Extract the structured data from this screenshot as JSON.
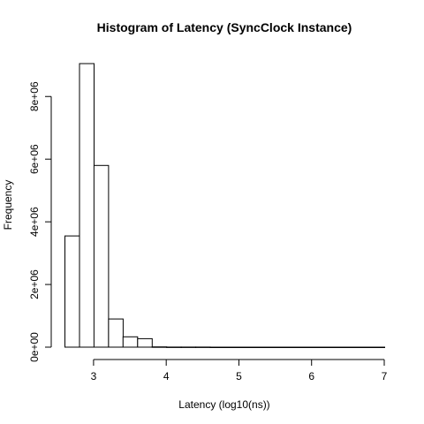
{
  "chart_data": {
    "type": "bar",
    "title": "Histogram of Latency (SyncClock Instance)",
    "xlabel": "Latency (log10(ns))",
    "ylabel": "Frequency",
    "bin_width": 0.2,
    "bins": [
      {
        "start": 2.6,
        "count": 3550000
      },
      {
        "start": 2.8,
        "count": 9050000
      },
      {
        "start": 3.0,
        "count": 5800000
      },
      {
        "start": 3.2,
        "count": 900000
      },
      {
        "start": 3.4,
        "count": 330000
      },
      {
        "start": 3.6,
        "count": 270000
      },
      {
        "start": 3.8,
        "count": 8000
      },
      {
        "start": 4.0,
        "count": 4000
      },
      {
        "start": 4.2,
        "count": 2500
      },
      {
        "start": 4.4,
        "count": 1800
      },
      {
        "start": 4.6,
        "count": 1200
      },
      {
        "start": 4.8,
        "count": 900
      },
      {
        "start": 5.0,
        "count": 700
      },
      {
        "start": 5.2,
        "count": 500
      },
      {
        "start": 5.4,
        "count": 400
      },
      {
        "start": 5.6,
        "count": 300
      },
      {
        "start": 5.8,
        "count": 250
      },
      {
        "start": 6.0,
        "count": 200
      },
      {
        "start": 6.2,
        "count": 150
      },
      {
        "start": 6.4,
        "count": 100
      },
      {
        "start": 6.6,
        "count": 80
      },
      {
        "start": 6.8,
        "count": 50
      }
    ],
    "xlim": [
      2.6,
      7.0
    ],
    "ylim": [
      0,
      9050000
    ],
    "x_ticks": [
      {
        "value": 3,
        "label": "3"
      },
      {
        "value": 4,
        "label": "4"
      },
      {
        "value": 5,
        "label": "5"
      },
      {
        "value": 6,
        "label": "6"
      },
      {
        "value": 7,
        "label": "7"
      }
    ],
    "y_ticks": [
      {
        "value": 0,
        "label": "0e+00"
      },
      {
        "value": 2000000,
        "label": "2e+06"
      },
      {
        "value": 4000000,
        "label": "4e+06"
      },
      {
        "value": 6000000,
        "label": "6e+06"
      },
      {
        "value": 8000000,
        "label": "8e+06"
      }
    ],
    "grid": false,
    "legend": "none",
    "bar_fill": "#ffffff",
    "bar_stroke": "#000000"
  }
}
